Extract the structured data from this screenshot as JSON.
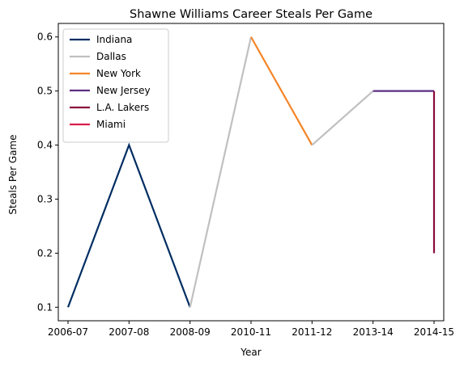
{
  "chart_data": {
    "type": "line",
    "title": "Shawne Williams Career Steals Per Game",
    "xlabel": "Year",
    "ylabel": "Steals Per Game",
    "categories": [
      "2006-07",
      "2007-08",
      "2008-09",
      "2010-11",
      "2011-12",
      "2013-14",
      "2014-15"
    ],
    "yticks": [
      0.1,
      0.2,
      0.3,
      0.4,
      0.5,
      0.6
    ],
    "ylim": [
      0.075,
      0.625
    ],
    "grid": false,
    "legend_position": "top-left",
    "series": [
      {
        "name": "Indiana",
        "color": "#002D62",
        "points": [
          [
            "2006-07",
            0.1
          ],
          [
            "2007-08",
            0.4
          ],
          [
            "2008-09",
            0.1
          ]
        ]
      },
      {
        "name": "Dallas",
        "color": "#BFC0C0",
        "points": [
          [
            "2008-09",
            0.1
          ],
          [
            "2010-11",
            0.6
          ]
        ]
      },
      {
        "name": "New York",
        "color": "#F58426",
        "points": [
          [
            "2010-11",
            0.6
          ],
          [
            "2011-12",
            0.4
          ]
        ]
      },
      {
        "name": "Dallas",
        "color": "#BFC0C0",
        "points": [
          [
            "2011-12",
            0.4
          ],
          [
            "2013-14",
            0.5
          ]
        ]
      },
      {
        "name": "New Jersey",
        "color": "#5C2D82",
        "points": [
          [
            "2013-14",
            0.5
          ],
          [
            "2014-15",
            0.5
          ]
        ]
      },
      {
        "name": "L.A. Lakers",
        "color": "#8B0A3D",
        "points": [
          [
            "2014-15",
            0.5
          ],
          [
            "2014-15",
            0.2
          ]
        ]
      },
      {
        "name": "Miami",
        "color": "#D91E4A",
        "points": []
      }
    ],
    "legend": [
      {
        "name": "Indiana",
        "color": "#002D62"
      },
      {
        "name": "Dallas",
        "color": "#BFC0C0"
      },
      {
        "name": "New York",
        "color": "#F58426"
      },
      {
        "name": "New Jersey",
        "color": "#5C2D82"
      },
      {
        "name": "L.A. Lakers",
        "color": "#8B0A3D"
      },
      {
        "name": "Miami",
        "color": "#D91E4A"
      }
    ]
  }
}
